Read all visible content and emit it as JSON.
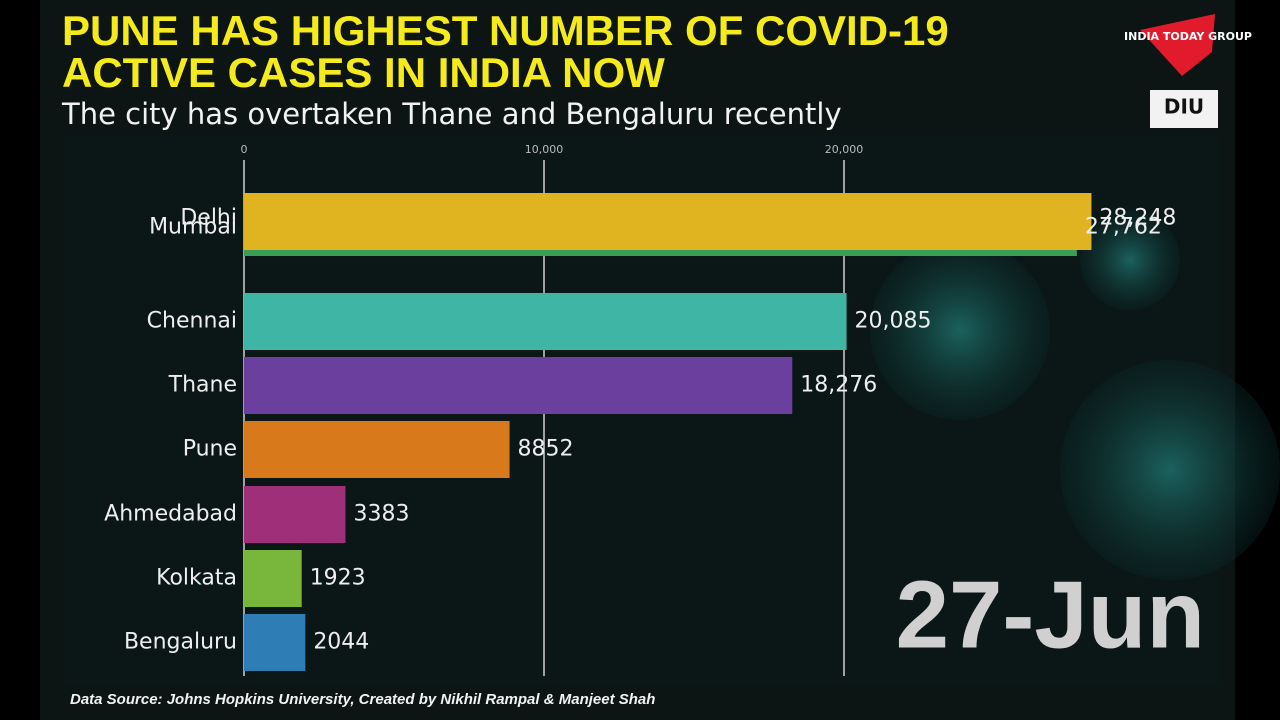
{
  "chart_data": {
    "type": "bar",
    "orientation": "horizontal",
    "title_lines": [
      "PUNE HAS HIGHEST NUMBER OF COVID-19",
      "ACTIVE CASES IN INDIA NOW"
    ],
    "subtitle": "The city has overtaken Thane and Bengaluru recently",
    "date_label": "27-Jun",
    "source": "Data Source: Johns Hopkins University, Created by Nikhil Rampal & Manjeet Shah",
    "logos": [
      "INDIA TODAY GROUP",
      "DIU"
    ],
    "categories": [
      "Delhi",
      "Mumbai",
      "Chennai",
      "Thane",
      "Pune",
      "Ahmedabad",
      "Kolkata",
      "Bengaluru"
    ],
    "values": [
      28248,
      27762,
      20085,
      18276,
      8852,
      3383,
      1923,
      2044
    ],
    "value_labels": [
      "28,248",
      "27,762",
      "20,085",
      "18,276",
      "8852",
      "3383",
      "1923",
      "2044"
    ],
    "colors": [
      "#e0b420",
      "#3a9e58",
      "#3fb5a6",
      "#6a3f9e",
      "#d87a1c",
      "#9e2f78",
      "#78b63c",
      "#2f7db5"
    ],
    "xlim": [
      0,
      32500
    ],
    "xticks": [
      0,
      {
        "value": 10000,
        "label": "10,000"
      },
      {
        "value": 20000,
        "label": "20,000"
      }
    ],
    "grid": true
  }
}
